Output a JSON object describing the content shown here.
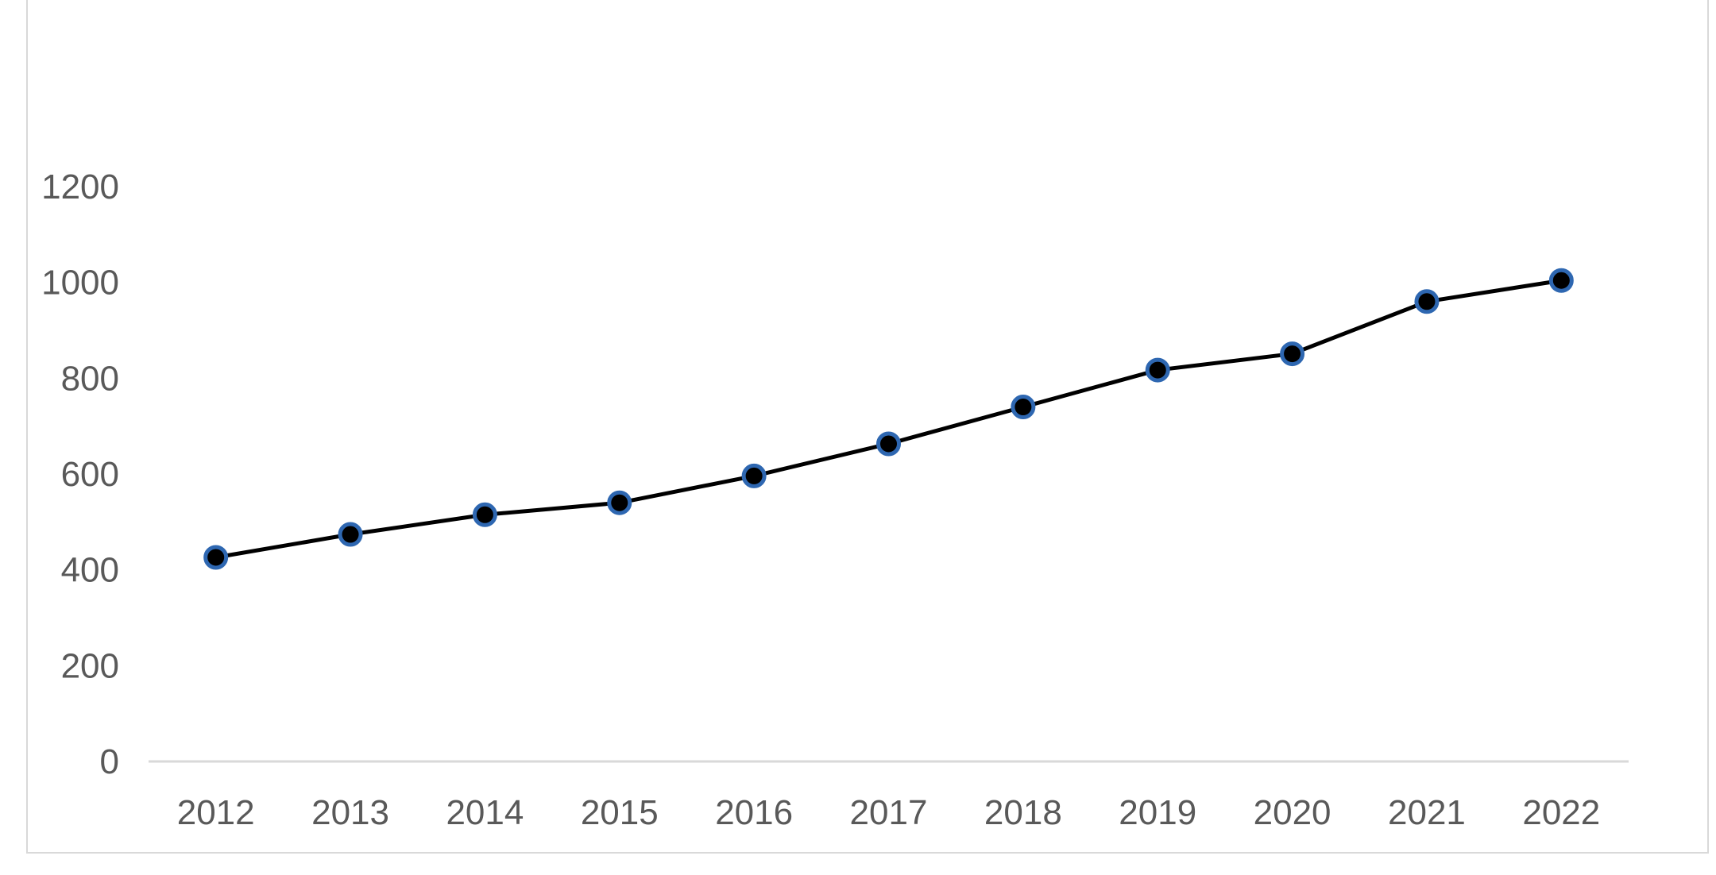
{
  "chart_data": {
    "type": "line",
    "categories": [
      "2012",
      "2013",
      "2014",
      "2015",
      "2016",
      "2017",
      "2018",
      "2019",
      "2020",
      "2021",
      "2022"
    ],
    "series": [
      {
        "values": [
          426,
          474,
          515,
          540,
          596,
          663,
          740,
          817,
          851,
          960,
          1004
        ]
      }
    ],
    "ylim": [
      0,
      1200
    ],
    "yticks": [
      "0",
      "200",
      "400",
      "600",
      "800",
      "1000",
      "1200"
    ],
    "grid": false,
    "legend": "none",
    "colors": {
      "line": "#000000",
      "marker_fill": "#000000",
      "marker_edge": "#2e67b1",
      "axis": "#d9d9d9",
      "text": "#595959"
    }
  }
}
